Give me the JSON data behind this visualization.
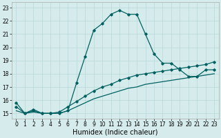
{
  "title": "",
  "xlabel": "Humidex (Indice chaleur)",
  "ylabel": "",
  "bg_color": "#d6ecec",
  "grid_color": "#b8d8d8",
  "line_color": "#006060",
  "x_ticks": [
    0,
    1,
    2,
    3,
    4,
    5,
    6,
    7,
    8,
    9,
    10,
    11,
    12,
    13,
    14,
    15,
    16,
    17,
    18,
    19,
    20,
    21,
    22,
    23
  ],
  "y_ticks": [
    15,
    16,
    17,
    18,
    19,
    20,
    21,
    22,
    23
  ],
  "ylim": [
    14.6,
    23.4
  ],
  "xlim": [
    -0.5,
    23.5
  ],
  "main_line_x": [
    0,
    1,
    2,
    3,
    4,
    5,
    6,
    7,
    8,
    9,
    10,
    11,
    12,
    13,
    14,
    15,
    16,
    17,
    18,
    19,
    20,
    21,
    22,
    23
  ],
  "main_line_y": [
    15.8,
    15.0,
    15.2,
    15.0,
    15.0,
    15.0,
    15.2,
    17.3,
    19.3,
    21.3,
    21.8,
    22.5,
    22.8,
    22.5,
    22.5,
    21.0,
    19.5,
    18.8,
    18.8,
    18.3,
    17.8,
    17.8,
    18.3,
    18.3
  ],
  "line2_x": [
    0,
    1,
    2,
    3,
    4,
    5,
    6,
    7,
    8,
    9,
    10,
    11,
    12,
    13,
    14,
    15,
    16,
    17,
    18,
    19,
    20,
    21,
    22,
    23
  ],
  "line2_y": [
    15.5,
    15.0,
    15.3,
    15.0,
    15.0,
    15.1,
    15.5,
    15.9,
    16.3,
    16.7,
    17.0,
    17.2,
    17.5,
    17.7,
    17.9,
    18.0,
    18.1,
    18.2,
    18.3,
    18.4,
    18.5,
    18.6,
    18.7,
    18.9
  ],
  "line3_x": [
    0,
    1,
    2,
    3,
    4,
    5,
    6,
    7,
    8,
    9,
    10,
    11,
    12,
    13,
    14,
    15,
    16,
    17,
    18,
    19,
    20,
    21,
    22,
    23
  ],
  "line3_y": [
    15.2,
    15.0,
    15.1,
    15.0,
    15.0,
    15.0,
    15.2,
    15.5,
    15.8,
    16.1,
    16.3,
    16.5,
    16.7,
    16.9,
    17.0,
    17.2,
    17.3,
    17.4,
    17.5,
    17.6,
    17.7,
    17.8,
    17.9,
    18.0
  ],
  "marker_style": "D",
  "marker_size": 1.8,
  "linewidth": 0.9,
  "tick_fontsize": 5.5,
  "xlabel_fontsize": 7.0,
  "figsize": [
    3.2,
    2.0
  ],
  "dpi": 100
}
